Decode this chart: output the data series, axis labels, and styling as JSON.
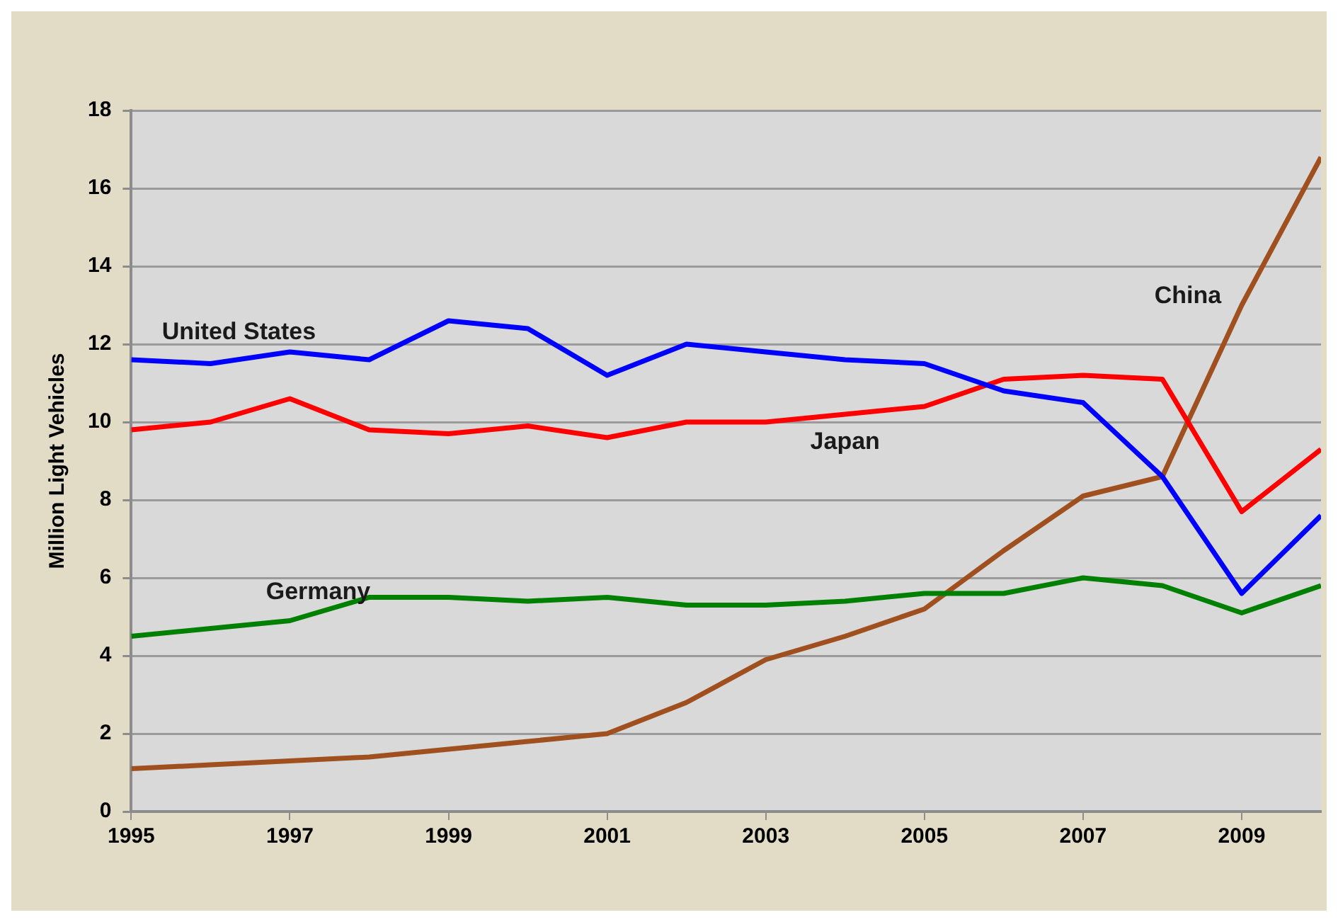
{
  "chart_data": {
    "type": "line",
    "ylabel": "Million Light Vehicles",
    "x": [
      1995,
      1996,
      1997,
      1998,
      1999,
      2000,
      2001,
      2002,
      2003,
      2004,
      2005,
      2006,
      2007,
      2008,
      2009,
      2010
    ],
    "xlim": [
      1995,
      2010
    ],
    "xticks": [
      1995,
      1997,
      1999,
      2001,
      2003,
      2005,
      2007,
      2009
    ],
    "ylim": [
      0,
      18
    ],
    "yticks": [
      0,
      2,
      4,
      6,
      8,
      10,
      12,
      14,
      16,
      18
    ],
    "grid": "y",
    "legend": false,
    "marker": "none",
    "line_style": "solid",
    "series": [
      {
        "name": "United States",
        "color": "#0000ff",
        "values": [
          11.6,
          11.5,
          11.8,
          11.6,
          12.6,
          12.4,
          11.2,
          12.0,
          11.8,
          11.6,
          11.5,
          10.8,
          10.5,
          8.6,
          5.6,
          7.6
        ]
      },
      {
        "name": "Japan",
        "color": "#ff0000",
        "values": [
          9.8,
          10.0,
          10.6,
          9.8,
          9.7,
          9.9,
          9.6,
          10.0,
          10.0,
          10.2,
          10.4,
          11.1,
          11.2,
          11.1,
          7.7,
          9.3
        ]
      },
      {
        "name": "Germany",
        "color": "#008000",
        "values": [
          4.5,
          4.7,
          4.9,
          5.5,
          5.5,
          5.4,
          5.5,
          5.3,
          5.3,
          5.4,
          5.6,
          5.6,
          6.0,
          5.8,
          5.1,
          5.8
        ]
      },
      {
        "name": "China",
        "color": "#a0501e",
        "values": [
          1.1,
          1.2,
          1.3,
          1.4,
          1.6,
          1.8,
          2.0,
          2.8,
          3.9,
          4.5,
          5.2,
          6.7,
          8.1,
          8.6,
          13.0,
          16.8
        ]
      }
    ]
  }
}
